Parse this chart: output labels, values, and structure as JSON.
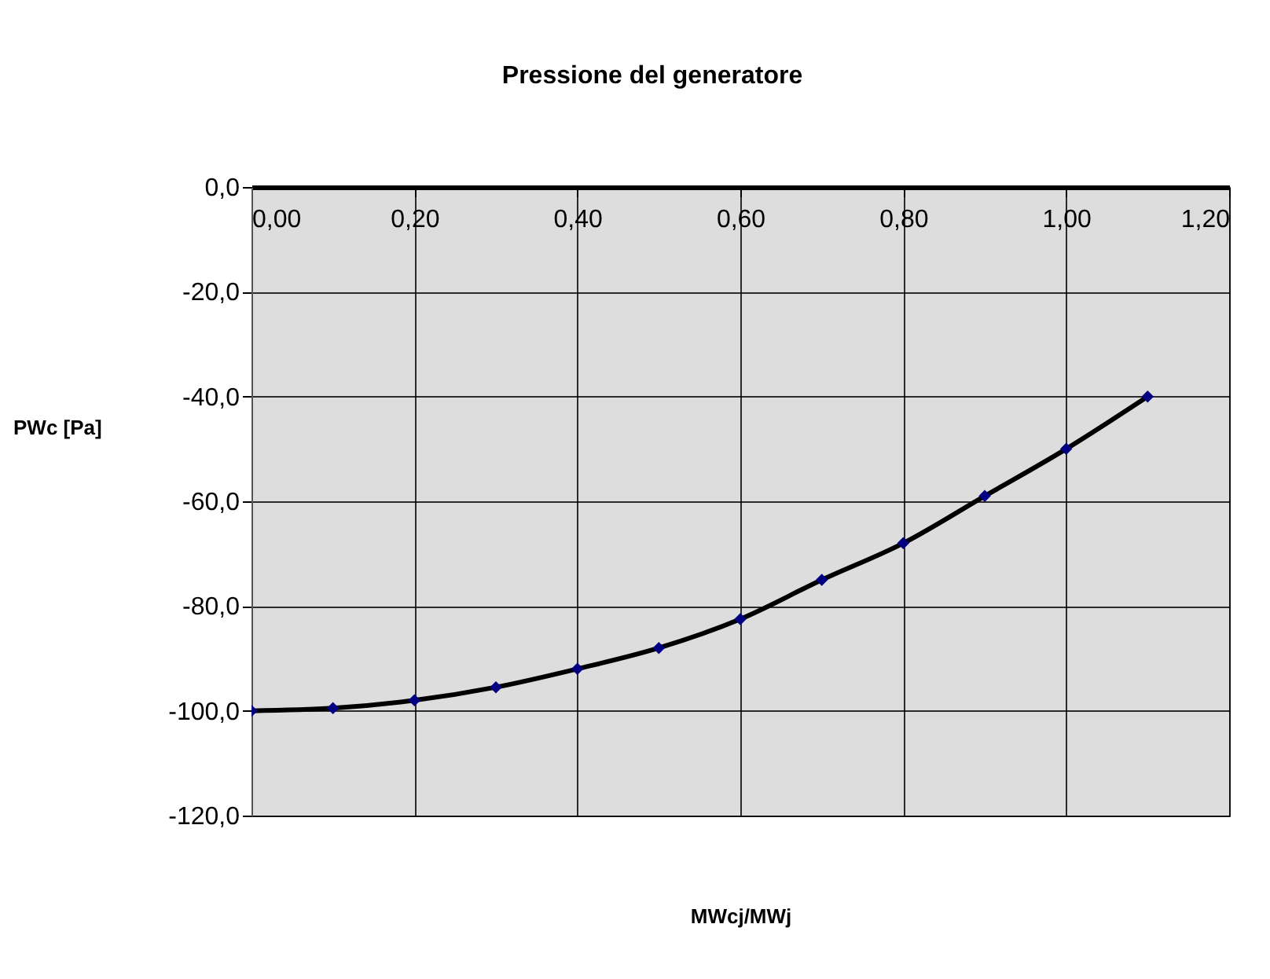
{
  "chart_data": {
    "type": "line",
    "title": "Pressione del generatore",
    "xlabel": "MWcj/MWj",
    "ylabel": "PWc [Pa]",
    "x": [
      0,
      0.1,
      0.2,
      0.3,
      0.4,
      0.5,
      0.6,
      0.7,
      0.8,
      0.9,
      1.0,
      1.1
    ],
    "series": [
      {
        "color": "#000000",
        "values": [
          -100,
          -99.5,
          -98,
          -95.5,
          -92,
          -88,
          -82.5,
          -75,
          -68,
          -59,
          -50,
          -40
        ]
      }
    ],
    "marker": "diamond",
    "xlim": [
      0,
      1.2
    ],
    "xticks": [
      {
        "value": 0,
        "label": "0,00"
      },
      {
        "value": 0.2,
        "label": "0,20"
      },
      {
        "value": 0.4,
        "label": "0,40"
      },
      {
        "value": 0.6,
        "label": "0,60"
      },
      {
        "value": 0.8,
        "label": "0,80"
      },
      {
        "value": 1.0,
        "label": "1,00"
      },
      {
        "value": 1.2,
        "label": "1,20"
      }
    ],
    "ylim": [
      -120,
      0
    ],
    "yticks": [
      {
        "value": -120,
        "label": "-120,0"
      },
      {
        "value": -100,
        "label": "-100,0"
      },
      {
        "value": -80,
        "label": "-80,0"
      },
      {
        "value": -60,
        "label": "-60,0"
      },
      {
        "value": -40,
        "label": "-40,0"
      },
      {
        "value": -20,
        "label": "-20,0"
      },
      {
        "value": 0,
        "label": "0,0"
      }
    ],
    "grid": true
  }
}
